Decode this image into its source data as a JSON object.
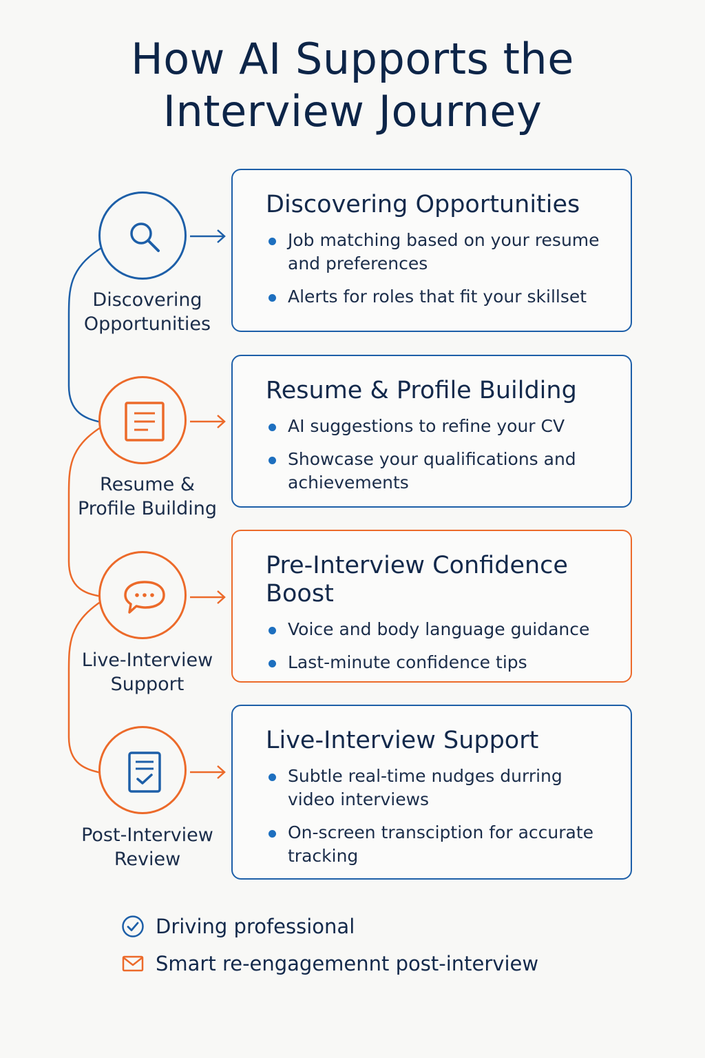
{
  "title": {
    "line1": "How AI Supports the",
    "line2": "Interview Journey"
  },
  "colors": {
    "blue": "#1d5fa8",
    "orange": "#ec6a2a",
    "navy": "#0d2548",
    "background": "#f8f8f6"
  },
  "steps": [
    {
      "label_line1": "Discovering",
      "label_line2": "Opportunities",
      "icon": "magnifier-icon",
      "color": "blue"
    },
    {
      "label_line1": "Resume &",
      "label_line2": "Profile Building",
      "icon": "document-icon",
      "color": "orange"
    },
    {
      "label_line1": "Live-Interview",
      "label_line2": "Support",
      "icon": "chat-bubble-icon",
      "color": "orange"
    },
    {
      "label_line1": "Post-Interview",
      "label_line2": "Review",
      "icon": "checklist-icon",
      "color": "blue"
    }
  ],
  "cards": [
    {
      "title": "Discovering Opportunities",
      "border": "blue",
      "bullets": [
        "Job matching based on your resume and preferences",
        "Alerts for roles that fit your skillset"
      ]
    },
    {
      "title": "Resume & Profile Building",
      "border": "blue",
      "bullets": [
        "AI suggestions to refine your CV",
        "Showcase your qualifications and achievements"
      ]
    },
    {
      "title": "Pre-Interview Confidence Boost",
      "border": "orange",
      "bullets": [
        "Voice and body language guidance",
        "Last-minute confidence tips"
      ]
    },
    {
      "title": "Live-Interview Support",
      "border": "blue",
      "bullets": [
        "Subtle real-time nudges durring video interviews",
        "On-screen transciption for accurate tracking"
      ]
    }
  ],
  "footer": [
    {
      "text": "Driving professional",
      "icon": "check-circle-icon",
      "color": "blue"
    },
    {
      "text": "Smart re-engagemennt post-interview",
      "icon": "envelope-icon",
      "color": "orange"
    }
  ]
}
